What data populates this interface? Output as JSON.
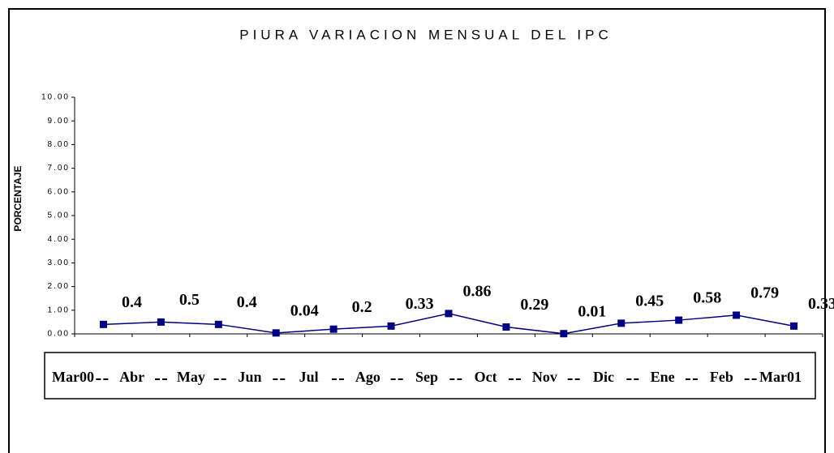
{
  "chart_data": {
    "type": "line",
    "title": "PIURA VARIACION MENSUAL DEL IPC",
    "y_label": "PORCENTAJE",
    "categories": [
      "Mar00",
      "Abr",
      "May",
      "Jun",
      "Jul",
      "Ago",
      "Sep",
      "Oct",
      "Nov",
      "Dic",
      "Ene",
      "Feb",
      "Mar01"
    ],
    "series": [
      {
        "name": "IPC",
        "color": "#000080",
        "values": [
          0.4,
          0.5,
          0.4,
          0.04,
          0.2,
          0.33,
          0.86,
          0.29,
          0.01,
          0.45,
          0.58,
          0.79,
          0.33
        ]
      }
    ],
    "ylim": [
      0,
      10
    ],
    "yticks": [
      {
        "value": 0,
        "label": "0.00"
      },
      {
        "value": 1,
        "label": "1.00"
      },
      {
        "value": 2,
        "label": "2.00"
      },
      {
        "value": 3,
        "label": "3.00"
      },
      {
        "value": 4,
        "label": "4.00"
      },
      {
        "value": 5,
        "label": "5.00"
      },
      {
        "value": 6,
        "label": "6.00"
      },
      {
        "value": 7,
        "label": "7.00"
      },
      {
        "value": 8,
        "label": "8.00"
      },
      {
        "value": 9,
        "label": "9.00"
      },
      {
        "value": 10,
        "label": "10.00"
      }
    ],
    "grid": false
  }
}
